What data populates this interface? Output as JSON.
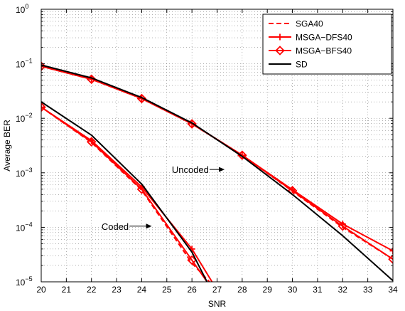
{
  "chart_data": {
    "type": "line",
    "xlabel": "SNR",
    "ylabel": "Average BER",
    "xlim": [
      20,
      34
    ],
    "ylim": [
      1e-05,
      1
    ],
    "yscale": "log",
    "grid": true,
    "legend_position": "top-right",
    "x_ticks": [
      "20",
      "21",
      "22",
      "23",
      "24",
      "25",
      "26",
      "27",
      "28",
      "29",
      "30",
      "31",
      "32",
      "33",
      "34"
    ],
    "y_ticks": [
      {
        "base": "10",
        "exp": "0"
      },
      {
        "base": "10",
        "exp": "−1"
      },
      {
        "base": "10",
        "exp": "−2"
      },
      {
        "base": "10",
        "exp": "−3"
      },
      {
        "base": "10",
        "exp": "−4"
      },
      {
        "base": "10",
        "exp": "−5"
      }
    ],
    "legend": [
      {
        "label": "SGA40",
        "color": "#ff0000",
        "style": "dashed",
        "marker": "none"
      },
      {
        "label": "MSGA−DFS40",
        "color": "#ff0000",
        "style": "solid",
        "marker": "plus"
      },
      {
        "label": "MSGA−BFS40",
        "color": "#ff0000",
        "style": "solid",
        "marker": "diamond"
      },
      {
        "label": "SD",
        "color": "#000000",
        "style": "solid",
        "marker": "none"
      }
    ],
    "series": [
      {
        "group": "uncoded",
        "legend_index": 0,
        "name": "SGA40",
        "x": [
          20,
          22,
          24,
          26,
          28,
          30,
          32,
          34
        ],
        "y": [
          0.09,
          0.052,
          0.023,
          0.0079,
          0.0021,
          0.00046,
          0.0001,
          2.6e-05
        ]
      },
      {
        "group": "uncoded",
        "legend_index": 1,
        "name": "MSGA−DFS40",
        "x": [
          20,
          22,
          24,
          26,
          28,
          30,
          32,
          34
        ],
        "y": [
          0.091,
          0.053,
          0.023,
          0.008,
          0.0021,
          0.00049,
          0.000115,
          3.7e-05
        ]
      },
      {
        "group": "uncoded",
        "legend_index": 2,
        "name": "MSGA−BFS40",
        "x": [
          20,
          22,
          24,
          26,
          28,
          30,
          32,
          34
        ],
        "y": [
          0.09,
          0.052,
          0.023,
          0.0079,
          0.0021,
          0.00047,
          0.000105,
          2.6e-05
        ]
      },
      {
        "group": "uncoded",
        "legend_index": 3,
        "name": "SD",
        "x": [
          20,
          22,
          24,
          26,
          28,
          30,
          32,
          34
        ],
        "y": [
          0.095,
          0.055,
          0.024,
          0.0082,
          0.002,
          0.0004,
          7e-05,
          1.05e-05
        ]
      },
      {
        "group": "coded",
        "legend_index": 0,
        "name": "SGA40",
        "x": [
          20,
          22,
          24,
          26,
          26.7
        ],
        "y": [
          0.016,
          0.0036,
          0.00048,
          2.2e-05,
          1e-05
        ]
      },
      {
        "group": "coded",
        "legend_index": 1,
        "name": "MSGA−DFS40",
        "x": [
          20,
          22,
          24,
          26,
          26.8
        ],
        "y": [
          0.016,
          0.0039,
          0.00055,
          4e-05,
          1e-05
        ]
      },
      {
        "group": "coded",
        "legend_index": 2,
        "name": "MSGA−BFS40",
        "x": [
          20,
          22,
          24,
          26,
          26.6
        ],
        "y": [
          0.016,
          0.0037,
          0.0005,
          2.5e-05,
          1e-05
        ]
      },
      {
        "group": "coded",
        "legend_index": 3,
        "name": "SD",
        "x": [
          20,
          22,
          24,
          26,
          26.6
        ],
        "y": [
          0.02,
          0.0049,
          0.00062,
          3.5e-05,
          1e-05
        ]
      }
    ],
    "annotations": [
      {
        "text": "Uncoded",
        "at": {
          "x": 25.2,
          "y": 0.00115
        },
        "arrow_to": {
          "x": 27.3,
          "y": 0.00115
        }
      },
      {
        "text": "Coded",
        "at": {
          "x": 22.4,
          "y": 0.000105
        },
        "arrow_to": {
          "x": 24.4,
          "y": 0.000105
        }
      }
    ]
  }
}
